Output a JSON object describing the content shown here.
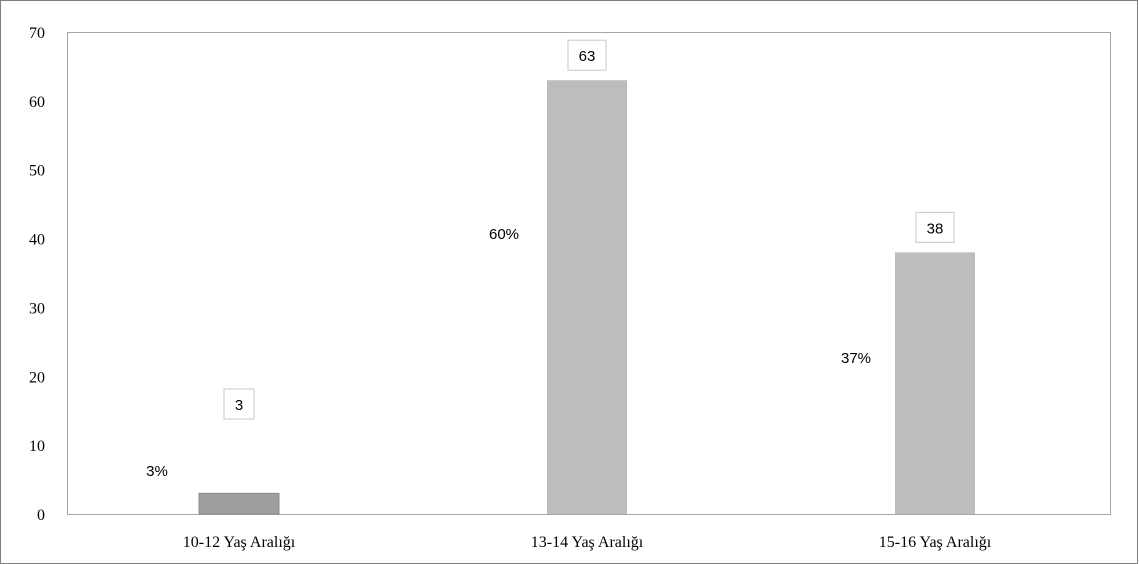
{
  "chart_data": {
    "type": "bar",
    "categories": [
      "10-12 Yaş Aralığı",
      "13-14 Yaş Aralığı",
      "15-16 Yaş Aralığı"
    ],
    "values": [
      3,
      63,
      38
    ],
    "value_labels": [
      "3",
      "63",
      "38"
    ],
    "percent_labels": [
      "3%",
      "60%",
      "37%"
    ],
    "ylim": [
      0,
      70
    ],
    "yticks": [
      0,
      10,
      20,
      30,
      40,
      50,
      60,
      70
    ],
    "ytick_labels": [
      "0",
      "10",
      "20",
      "30",
      "40",
      "50",
      "60",
      "70"
    ],
    "grid": false,
    "legend": "none",
    "bar_colors": [
      "#9e9e9e",
      "#bdbdbd",
      "#bdbdbd"
    ],
    "label_box_color": "#c8c8c8",
    "frame_color": "#a6a6a6"
  }
}
